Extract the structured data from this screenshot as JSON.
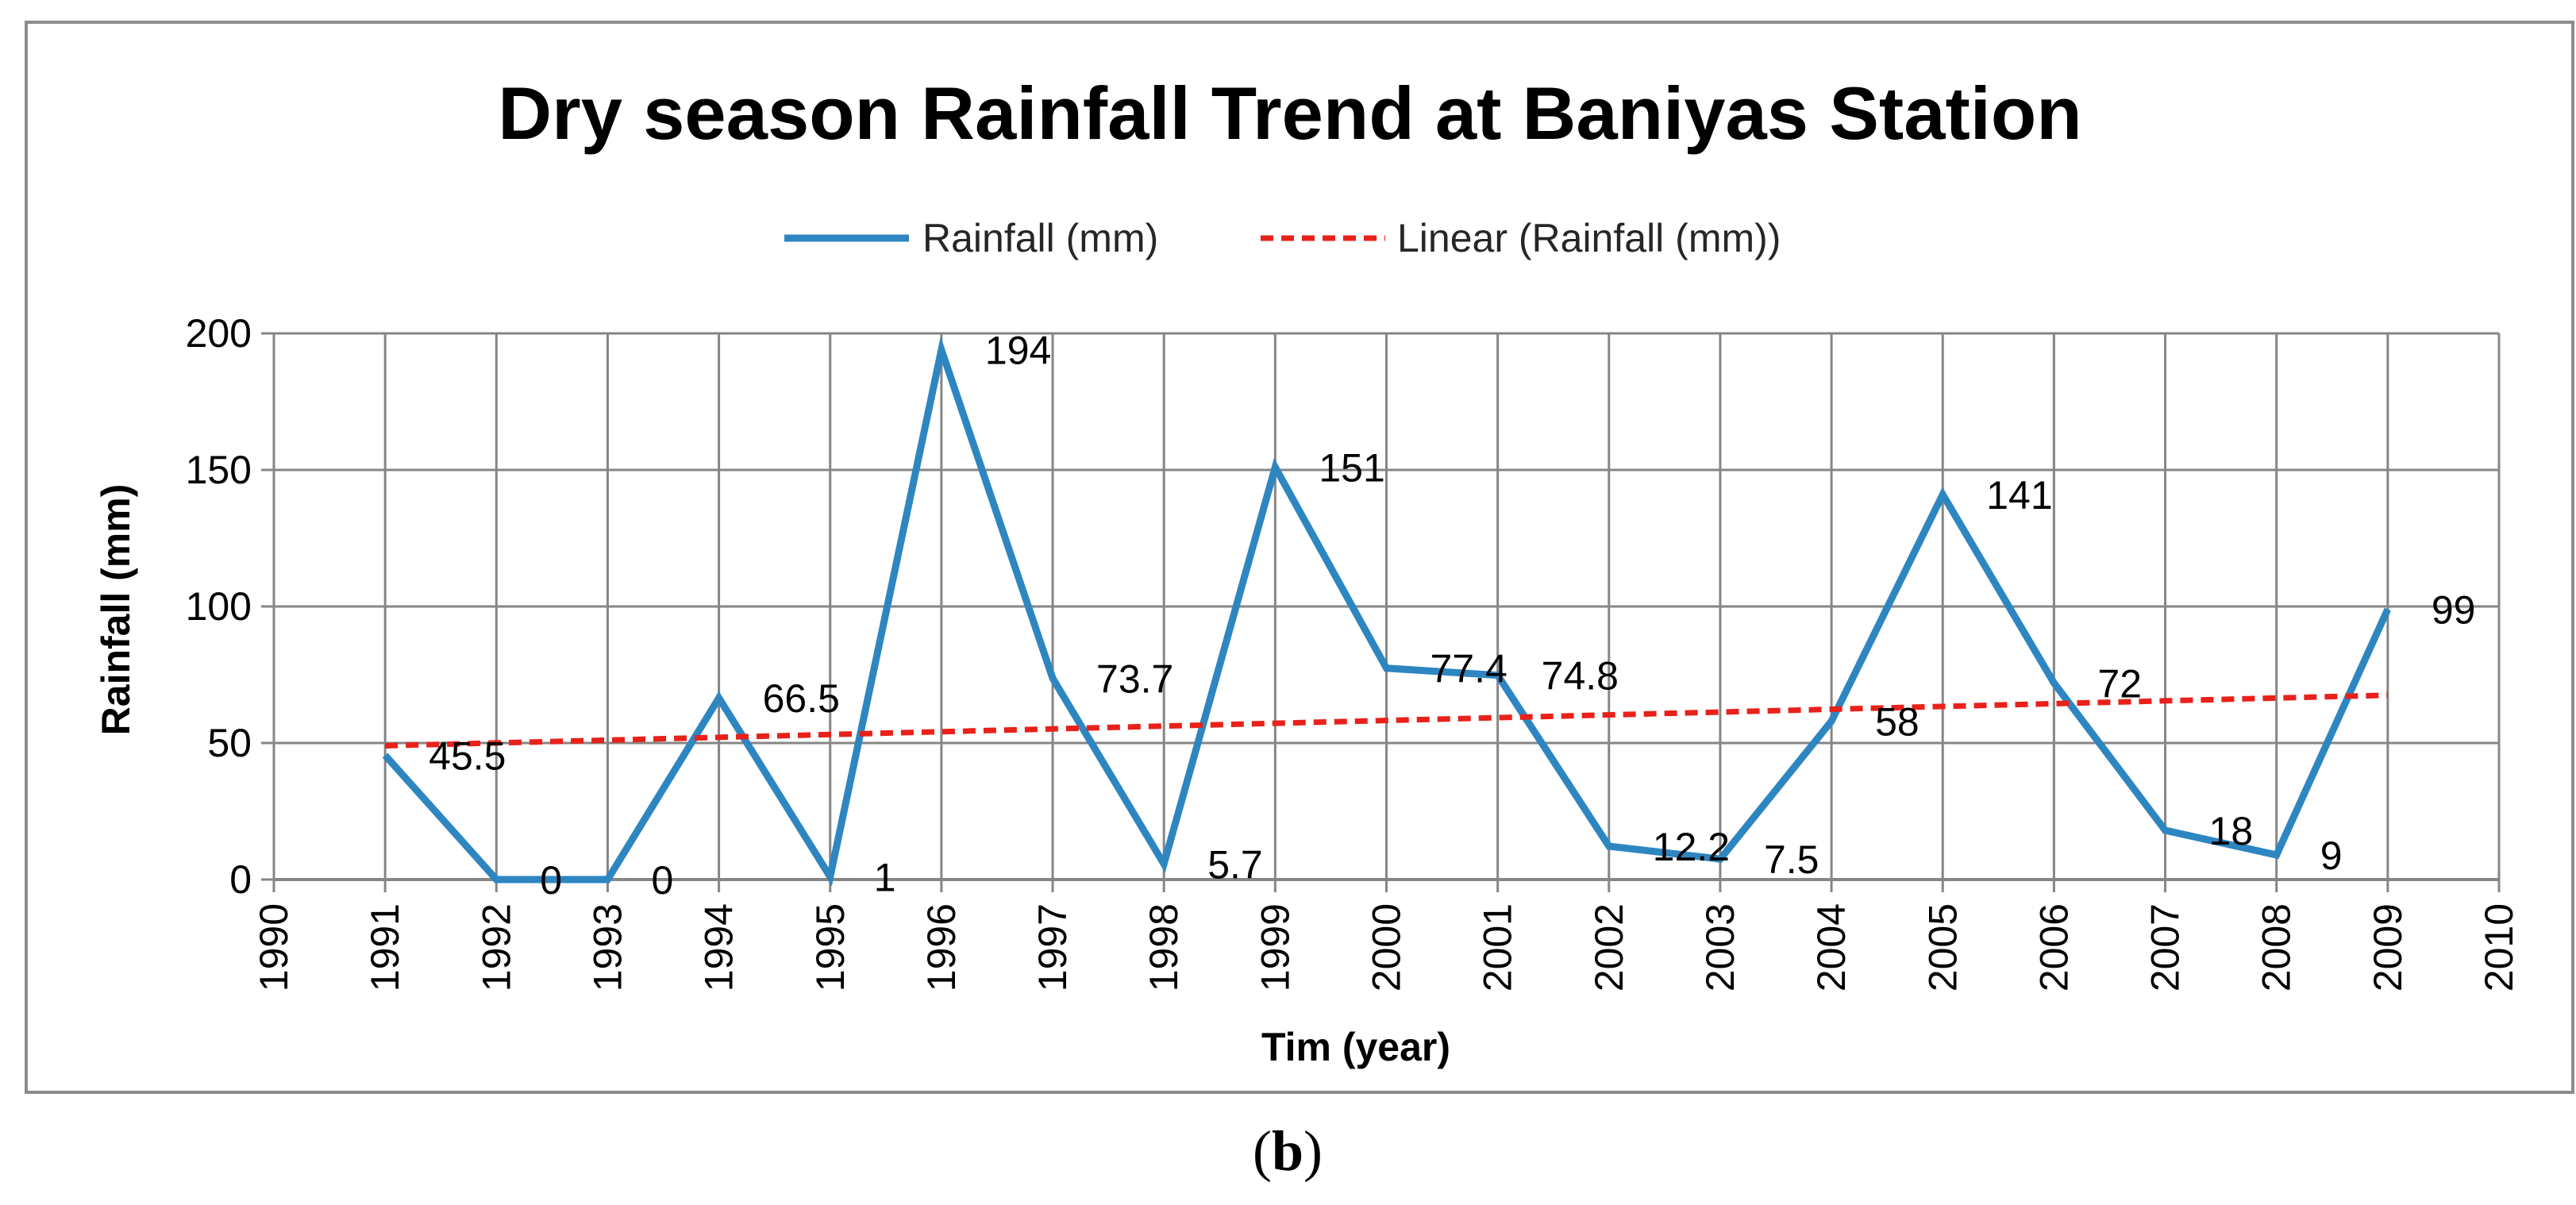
{
  "chart_data": {
    "type": "line",
    "title": "Dry season Rainfall Trend at Baniyas Station",
    "xlabel": "Tim (year)",
    "ylabel": "Rainfall (mm)",
    "xlim": [
      1990,
      2010
    ],
    "ylim": [
      0,
      200
    ],
    "x_ticks": [
      1990,
      1991,
      1992,
      1993,
      1994,
      1995,
      1996,
      1997,
      1998,
      1999,
      2000,
      2001,
      2002,
      2003,
      2004,
      2005,
      2006,
      2007,
      2008,
      2009,
      2010
    ],
    "y_ticks": [
      0,
      50,
      100,
      150,
      200
    ],
    "grid": true,
    "legend_position": "top-center",
    "series": [
      {
        "name": "Rainfall (mm)",
        "color": "#2E86C1",
        "style": "solid",
        "x": [
          1991,
          1992,
          1993,
          1994,
          1995,
          1996,
          1997,
          1998,
          1999,
          2000,
          2001,
          2002,
          2003,
          2004,
          2005,
          2006,
          2007,
          2008,
          2009
        ],
        "values": [
          45.5,
          0,
          0,
          66.5,
          1,
          194,
          73.7,
          5.7,
          151,
          77.4,
          74.8,
          12.2,
          7.5,
          58,
          141,
          72,
          18,
          9,
          99
        ],
        "labels": [
          "45.5",
          "0",
          "0",
          "66.5",
          "1",
          "194",
          "73.7",
          "5.7",
          "151",
          "77.4",
          "74.8",
          "12.2",
          "7.5",
          "58",
          "141",
          "72",
          "18",
          "9",
          "99"
        ]
      },
      {
        "name": "Linear (Rainfall (mm))",
        "color": "#E8211A",
        "style": "dashed",
        "x": [
          1991,
          2009
        ],
        "values": [
          49,
          67.5
        ]
      }
    ]
  },
  "caption": {
    "open": "(",
    "letter": "b",
    "close": ")"
  }
}
